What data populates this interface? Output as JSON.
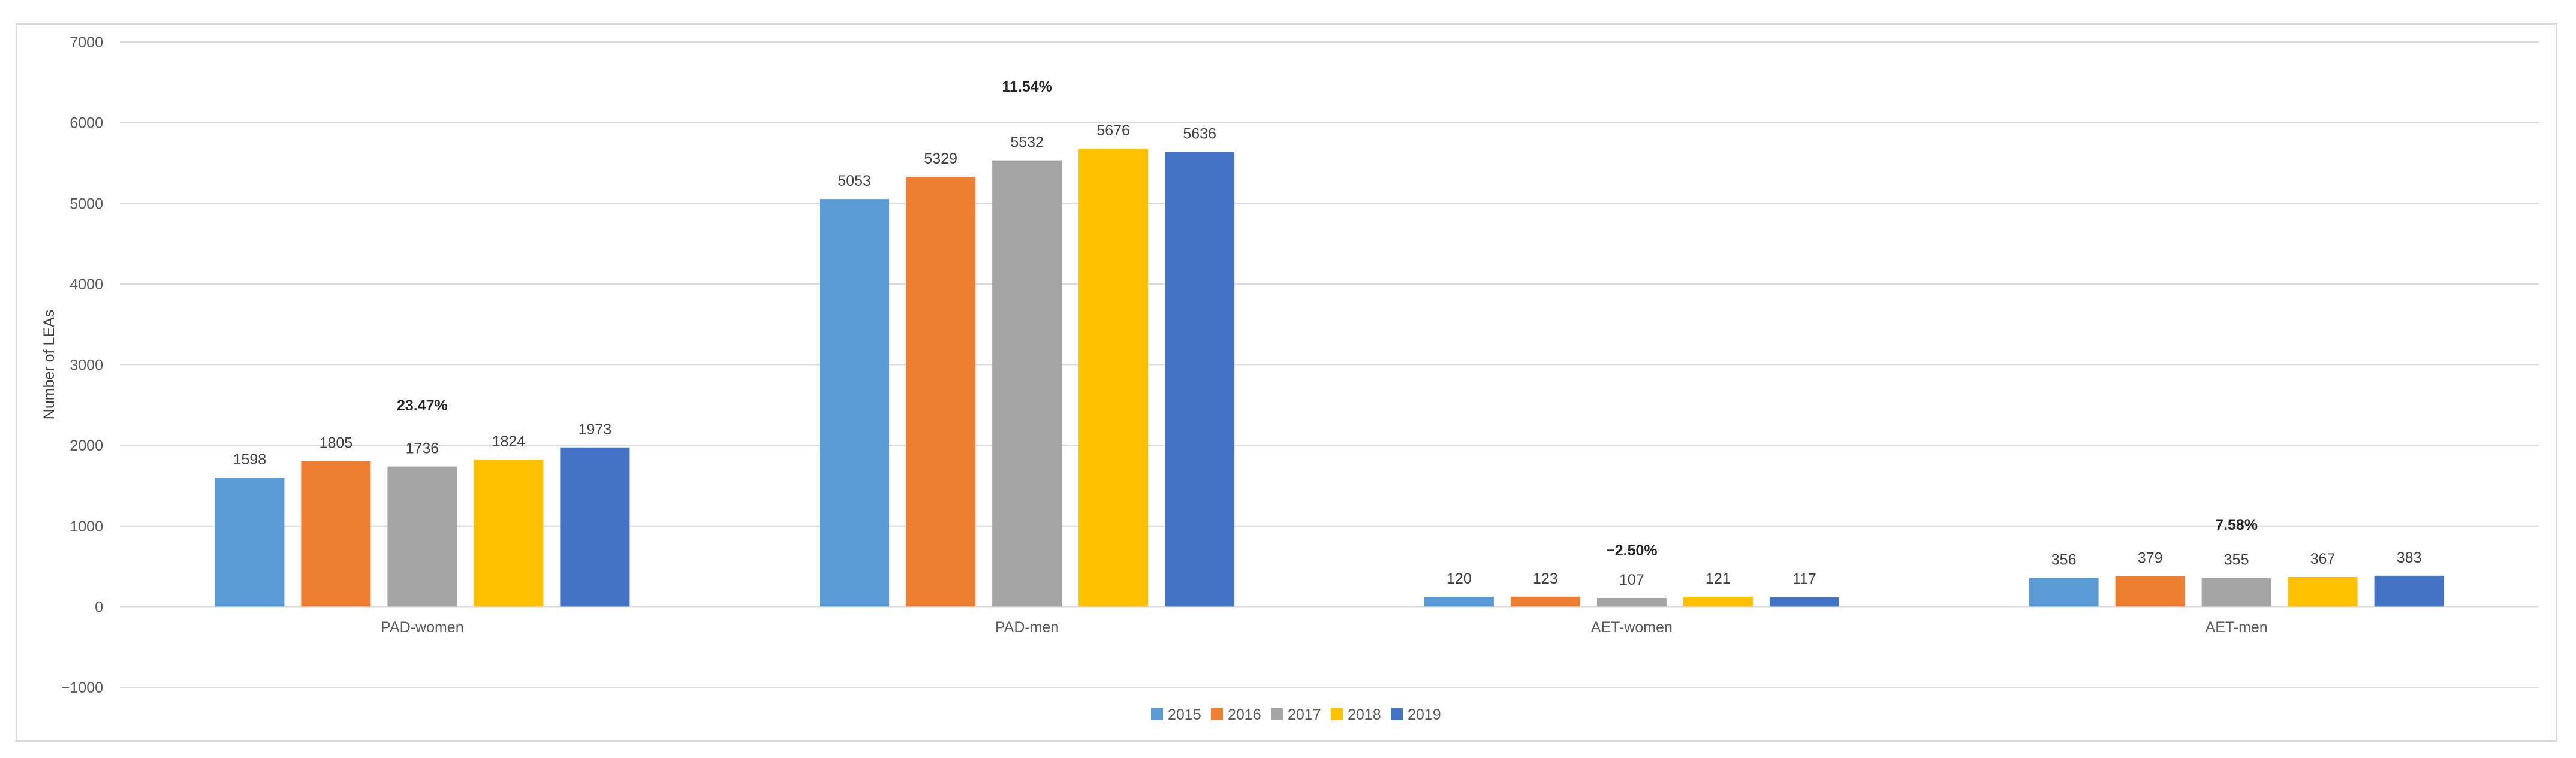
{
  "chart_data": {
    "type": "bar",
    "title": "",
    "xlabel": "",
    "ylabel": "Number of LEAs",
    "ylim": [
      -1000,
      7000
    ],
    "yticks": [
      -1000,
      0,
      1000,
      2000,
      3000,
      4000,
      5000,
      6000,
      7000
    ],
    "ytick_labels": [
      "−1000",
      "0",
      "1000",
      "2000",
      "3000",
      "4000",
      "5000",
      "6000",
      "7000"
    ],
    "grid": true,
    "legend_position": "bottom",
    "categories": [
      "PAD-women",
      "PAD-men",
      "AET-women",
      "AET-men"
    ],
    "series": [
      {
        "name": "2015",
        "color": "#5b9bd5",
        "values": [
          1598,
          5053,
          120,
          356
        ]
      },
      {
        "name": "2016",
        "color": "#ed7d31",
        "values": [
          1805,
          5329,
          123,
          379
        ]
      },
      {
        "name": "2017",
        "color": "#a5a5a5",
        "values": [
          1736,
          5532,
          107,
          355
        ]
      },
      {
        "name": "2018",
        "color": "#ffc000",
        "values": [
          1824,
          5676,
          121,
          367
        ]
      },
      {
        "name": "2019",
        "color": "#4472c4",
        "values": [
          1973,
          5636,
          117,
          383
        ]
      }
    ],
    "annotations": [
      {
        "category": "PAD-women",
        "text": "23.47%",
        "y": 2500
      },
      {
        "category": "PAD-men",
        "text": "11.54%",
        "y": 6450
      },
      {
        "category": "AET-women",
        "text": "−2.50%",
        "y": 700
      },
      {
        "category": "AET-men",
        "text": "7.58%",
        "y": 1020
      }
    ]
  }
}
